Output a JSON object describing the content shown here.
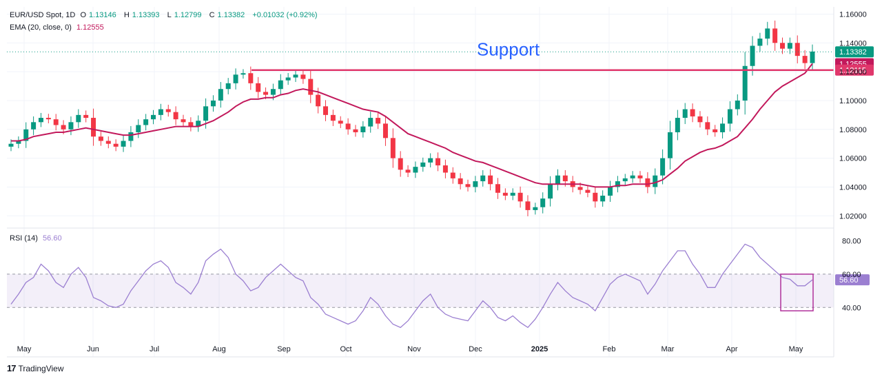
{
  "header": {
    "symbol": "EUR/USD Spot, 1D",
    "open_label": "O",
    "open": "1.13146",
    "high_label": "H",
    "high": "1.13393",
    "low_label": "L",
    "low": "1.12799",
    "close_label": "C",
    "close": "1.13382",
    "change": "+0.01032 (+0.92%)",
    "ema_label": "EMA (20, close, 0)",
    "ema_value": "1.12555",
    "rsi_label": "RSI (14)",
    "rsi_value": "56.60"
  },
  "annotation": "Support",
  "price_tags": {
    "last": "1.13382",
    "ema": "1.12555",
    "support": "1.12115"
  },
  "footer": {
    "brand": "TradingView"
  },
  "colors": {
    "up": "#089981",
    "down": "#f23645",
    "ema": "#c2185b",
    "support": "#e0376b",
    "rsi": "#9b7fd1",
    "annotation": "#2962ff"
  },
  "chart_data": {
    "type": "candlestick",
    "x_ticks": [
      "May",
      "Jun",
      "Jul",
      "Aug",
      "Sep",
      "Oct",
      "Nov",
      "Dec",
      "2025",
      "Feb",
      "Mar",
      "Apr",
      "May"
    ],
    "price_axis": {
      "ticks": [
        "1.02000",
        "1.04000",
        "1.06000",
        "1.08000",
        "1.10000",
        "1.12000",
        "1.14000",
        "1.16000"
      ],
      "ylim": [
        1.012,
        1.165
      ]
    },
    "support_level": 1.12115,
    "close_series_approx": [
      1.07,
      1.072,
      1.08,
      1.085,
      1.088,
      1.087,
      1.083,
      1.08,
      1.085,
      1.09,
      1.088,
      1.075,
      1.072,
      1.07,
      1.068,
      1.072,
      1.078,
      1.083,
      1.087,
      1.09,
      1.094,
      1.092,
      1.087,
      1.085,
      1.082,
      1.086,
      1.096,
      1.1,
      1.108,
      1.112,
      1.118,
      1.119,
      1.112,
      1.106,
      1.104,
      1.108,
      1.114,
      1.116,
      1.118,
      1.115,
      1.104,
      1.096,
      1.09,
      1.086,
      1.084,
      1.08,
      1.078,
      1.082,
      1.088,
      1.084,
      1.074,
      1.06,
      1.052,
      1.05,
      1.054,
      1.057,
      1.06,
      1.055,
      1.05,
      1.046,
      1.042,
      1.04,
      1.044,
      1.048,
      1.042,
      1.036,
      1.034,
      1.036,
      1.03,
      1.024,
      1.026,
      1.032,
      1.042,
      1.048,
      1.044,
      1.04,
      1.038,
      1.036,
      1.03,
      1.034,
      1.04,
      1.044,
      1.046,
      1.048,
      1.046,
      1.04,
      1.048,
      1.06,
      1.078,
      1.088,
      1.094,
      1.089,
      1.085,
      1.08,
      1.078,
      1.084,
      1.094,
      1.1,
      1.124,
      1.138,
      1.143,
      1.15,
      1.14,
      1.136,
      1.14,
      1.131,
      1.126,
      1.134
    ],
    "ema_series_approx": [
      1.072,
      1.072,
      1.073,
      1.075,
      1.076,
      1.077,
      1.078,
      1.078,
      1.079,
      1.08,
      1.081,
      1.08,
      1.079,
      1.078,
      1.077,
      1.076,
      1.076,
      1.077,
      1.078,
      1.079,
      1.08,
      1.081,
      1.082,
      1.082,
      1.082,
      1.082,
      1.084,
      1.086,
      1.089,
      1.092,
      1.096,
      1.099,
      1.101,
      1.101,
      1.102,
      1.102,
      1.104,
      1.105,
      1.107,
      1.108,
      1.107,
      1.106,
      1.104,
      1.102,
      1.1,
      1.098,
      1.096,
      1.094,
      1.093,
      1.092,
      1.089,
      1.085,
      1.081,
      1.077,
      1.075,
      1.073,
      1.071,
      1.069,
      1.067,
      1.064,
      1.062,
      1.06,
      1.058,
      1.057,
      1.055,
      1.053,
      1.051,
      1.049,
      1.047,
      1.045,
      1.043,
      1.042,
      1.042,
      1.042,
      1.042,
      1.042,
      1.042,
      1.041,
      1.04,
      1.04,
      1.04,
      1.041,
      1.041,
      1.042,
      1.042,
      1.042,
      1.043,
      1.045,
      1.049,
      1.053,
      1.058,
      1.061,
      1.064,
      1.066,
      1.067,
      1.069,
      1.072,
      1.075,
      1.081,
      1.087,
      1.094,
      1.1,
      1.106,
      1.11,
      1.113,
      1.116,
      1.119,
      1.1256
    ],
    "rsi": {
      "ticks": [
        "40.00",
        "60.00",
        "80.00"
      ],
      "ylim": [
        24,
        86
      ],
      "band": [
        40,
        60
      ],
      "series_approx": [
        42,
        48,
        55,
        58,
        66,
        62,
        55,
        52,
        60,
        64,
        58,
        46,
        44,
        41,
        40,
        42,
        50,
        56,
        62,
        66,
        68,
        64,
        55,
        52,
        48,
        55,
        68,
        72,
        75,
        70,
        60,
        56,
        50,
        52,
        58,
        62,
        66,
        62,
        58,
        56,
        46,
        42,
        36,
        34,
        32,
        30,
        32,
        38,
        46,
        42,
        35,
        30,
        28,
        32,
        38,
        44,
        48,
        40,
        36,
        34,
        33,
        32,
        38,
        44,
        40,
        34,
        32,
        35,
        31,
        28,
        33,
        40,
        48,
        55,
        50,
        46,
        44,
        42,
        38,
        46,
        54,
        58,
        60,
        58,
        56,
        48,
        54,
        62,
        68,
        74,
        74,
        66,
        60,
        52,
        52,
        60,
        66,
        72,
        78,
        76,
        70,
        66,
        62,
        58,
        57,
        53,
        53,
        56.6
      ]
    }
  }
}
